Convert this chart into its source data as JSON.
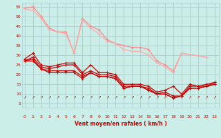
{
  "bg_color": "#cceee8",
  "grid_color": "#aacccc",
  "xlabel": "Vent moyen/en rafales ( km/h )",
  "xlabel_color": "#cc0000",
  "tick_color": "#cc0000",
  "x_ticks": [
    0,
    1,
    2,
    3,
    4,
    5,
    6,
    7,
    8,
    9,
    10,
    11,
    12,
    13,
    14,
    15,
    16,
    17,
    18,
    19,
    20,
    21,
    22,
    23
  ],
  "y_ticks": [
    5,
    10,
    15,
    20,
    25,
    30,
    35,
    40,
    45,
    50,
    55
  ],
  "ylim": [
    3,
    57
  ],
  "xlim": [
    -0.3,
    23.5
  ],
  "light_color1": "#ff8888",
  "light_color2": "#ffaaaa",
  "dark_color": "#cc0000",
  "series_light1_x": [
    0,
    1,
    2,
    3,
    4,
    5,
    6,
    7,
    8,
    9,
    10,
    11,
    12,
    13,
    14,
    15,
    16,
    17,
    18,
    19,
    22
  ],
  "series_light1_y": [
    54,
    55,
    50,
    44,
    42,
    42,
    31,
    49,
    45,
    43,
    38,
    36,
    35,
    34,
    34,
    33,
    27,
    25,
    22,
    31,
    29
  ],
  "series_light2_x": [
    0,
    1,
    2,
    3,
    4,
    5,
    6,
    7,
    8,
    9,
    10,
    11,
    12,
    13,
    14,
    15,
    16,
    17,
    18,
    19,
    22
  ],
  "series_light2_y": [
    54,
    53,
    49,
    43,
    42,
    41,
    31,
    48,
    44,
    41,
    37,
    36,
    33,
    32,
    32,
    30,
    26,
    24,
    21,
    31,
    29
  ],
  "series_dark1_x": [
    0,
    1,
    2,
    3,
    4,
    5,
    6,
    7,
    8,
    9,
    10,
    11,
    12,
    13,
    14,
    15,
    16,
    17,
    18,
    19,
    20,
    21,
    22,
    23
  ],
  "series_dark1_y": [
    28,
    31,
    25,
    24,
    25,
    26,
    26,
    21,
    25,
    21,
    21,
    20,
    15,
    15,
    15,
    14,
    11,
    12,
    14,
    10,
    15,
    14,
    14,
    16
  ],
  "series_dark2_x": [
    0,
    1,
    2,
    3,
    4,
    5,
    6,
    7,
    8,
    9,
    10,
    11,
    12,
    13,
    14,
    15,
    16,
    17,
    18,
    19,
    20,
    21,
    22,
    23
  ],
  "series_dark2_y": [
    27,
    29,
    24,
    23,
    24,
    25,
    25,
    20,
    22,
    20,
    20,
    19,
    14,
    14,
    14,
    13,
    10,
    11,
    9,
    9,
    14,
    14,
    15,
    16
  ],
  "series_dark3_x": [
    0,
    1,
    2,
    3,
    4,
    5,
    6,
    7,
    8,
    9,
    10,
    11,
    12,
    13,
    14,
    15,
    16,
    17,
    18,
    19,
    20,
    21,
    22,
    23
  ],
  "series_dark3_y": [
    27,
    28,
    23,
    22,
    22,
    22,
    22,
    19,
    21,
    19,
    19,
    18,
    13,
    14,
    14,
    12,
    10,
    10,
    8,
    9,
    13,
    13,
    14,
    15
  ],
  "series_dark4_x": [
    0,
    1,
    2,
    3,
    4,
    5,
    6,
    7,
    8,
    9,
    10,
    11,
    12,
    13,
    14,
    15,
    16,
    17,
    18,
    19,
    20,
    21,
    22,
    23
  ],
  "series_dark4_y": [
    27,
    27,
    23,
    21,
    21,
    21,
    21,
    18,
    21,
    19,
    19,
    18,
    13,
    14,
    14,
    12,
    10,
    10,
    8,
    9,
    13,
    13,
    14,
    15
  ]
}
